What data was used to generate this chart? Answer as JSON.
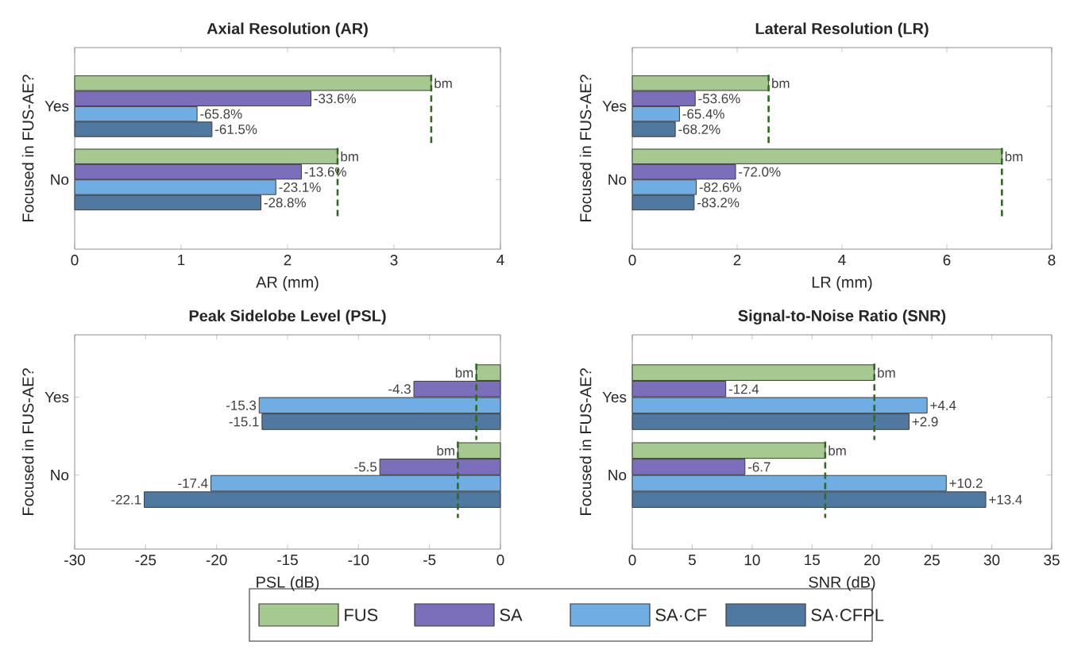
{
  "chart_data": [
    {
      "type": "bar",
      "orientation": "horizontal",
      "title": "Axial Resolution (AR)",
      "xlabel": "AR (mm)",
      "ylabel": "Focused in FUS-AE?",
      "categories": [
        "Yes",
        "No"
      ],
      "xlim": [
        0,
        4
      ],
      "xticks": [
        0,
        1,
        2,
        3,
        4
      ],
      "legend": "bottom",
      "series": [
        {
          "name": "FUS",
          "color": "#a6c98f",
          "values": [
            3.35,
            2.47
          ]
        },
        {
          "name": "SA",
          "color": "#7b6fbb",
          "values": [
            2.22,
            2.13
          ]
        },
        {
          "name": "SA·CF",
          "color": "#70ade2",
          "values": [
            1.15,
            1.89
          ]
        },
        {
          "name": "SA·CFPL",
          "color": "#4f79a0",
          "values": [
            1.29,
            1.75
          ]
        }
      ],
      "annotations": [
        {
          "text": "bm",
          "x": 3.35,
          "y": "Yes"
        },
        {
          "text": "-33.6%",
          "x": 2.22,
          "y": "Yes"
        },
        {
          "text": "-65.8%",
          "x": 1.15,
          "y": "Yes"
        },
        {
          "text": "-61.5%",
          "x": 1.29,
          "y": "Yes"
        },
        {
          "text": "bm",
          "x": 2.47,
          "y": "No"
        },
        {
          "text": "-13.6%",
          "x": 2.13,
          "y": "No"
        },
        {
          "text": "-23.1%",
          "x": 1.89,
          "y": "No"
        },
        {
          "text": "-28.8%",
          "x": 1.75,
          "y": "No"
        }
      ],
      "ref_lines": [
        {
          "axis": "x",
          "value": 3.35,
          "color": "#2e6b1e",
          "line_style": "dashed"
        },
        {
          "axis": "x",
          "value": 2.47,
          "color": "#2e6b1e",
          "line_style": "dashed"
        }
      ]
    },
    {
      "type": "bar",
      "orientation": "horizontal",
      "title": "Lateral Resolution (LR)",
      "xlabel": "LR (mm)",
      "ylabel": "Focused in FUS-AE?",
      "categories": [
        "Yes",
        "No"
      ],
      "xlim": [
        0,
        8
      ],
      "xticks": [
        0,
        2,
        4,
        6,
        8
      ],
      "series": [
        {
          "color": "#a6c98f",
          "values": [
            2.6,
            7.05
          ]
        },
        {
          "color": "#7b6fbb",
          "values": [
            1.2,
            1.97
          ]
        },
        {
          "color": "#70ade2",
          "values": [
            0.9,
            1.22
          ]
        },
        {
          "color": "#4f79a0",
          "values": [
            0.82,
            1.18
          ]
        }
      ],
      "annotations": [
        {
          "text": "bm",
          "x": 2.6,
          "y": "Yes"
        },
        {
          "text": "-53.6%",
          "x": 1.2,
          "y": "Yes"
        },
        {
          "text": "-65.4%",
          "x": 0.9,
          "y": "Yes"
        },
        {
          "text": "-68.2%",
          "x": 0.82,
          "y": "Yes"
        },
        {
          "text": "bm",
          "x": 7.05,
          "y": "No"
        },
        {
          "text": "-72.0%",
          "x": 1.97,
          "y": "No"
        },
        {
          "text": "-82.6%",
          "x": 1.22,
          "y": "No"
        },
        {
          "text": "-83.2%",
          "x": 1.18,
          "y": "No"
        }
      ],
      "ref_lines": [
        {
          "axis": "x",
          "value": 2.6,
          "color": "#2e6b1e",
          "line_style": "dashed"
        },
        {
          "axis": "x",
          "value": 7.05,
          "color": "#2e6b1e",
          "line_style": "dashed"
        }
      ]
    },
    {
      "type": "bar",
      "orientation": "horizontal",
      "title": "Peak Sidelobe Level (PSL)",
      "xlabel": "PSL (dB)",
      "ylabel": "Focused in FUS-AE?",
      "categories": [
        "Yes",
        "No"
      ],
      "xlim": [
        -30,
        0
      ],
      "xticks": [
        -30,
        -25,
        -20,
        -15,
        -10,
        -5,
        0
      ],
      "series": [
        {
          "color": "#a6c98f",
          "values": [
            -1.7,
            -3.0
          ]
        },
        {
          "color": "#7b6fbb",
          "values": [
            -6.1,
            -8.5
          ]
        },
        {
          "color": "#70ade2",
          "values": [
            -17.0,
            -20.4
          ]
        },
        {
          "color": "#4f79a0",
          "values": [
            -16.8,
            -25.1
          ]
        }
      ],
      "annotations": [
        {
          "text": "bm",
          "x": -1.7,
          "y": "Yes"
        },
        {
          "text": "-4.3",
          "x": -6.1,
          "y": "Yes"
        },
        {
          "text": "-15.3",
          "x": -17.0,
          "y": "Yes"
        },
        {
          "text": "-15.1",
          "x": -16.8,
          "y": "Yes"
        },
        {
          "text": "bm",
          "x": -3.0,
          "y": "No"
        },
        {
          "text": "-5.5",
          "x": -8.5,
          "y": "No"
        },
        {
          "text": "-17.4",
          "x": -20.4,
          "y": "No"
        },
        "-22.1"
      ],
      "ref_lines": [
        {
          "axis": "x",
          "value": -1.7,
          "color": "#2e6b1e",
          "line_style": "dashed"
        },
        {
          "axis": "x",
          "value": -3.0,
          "color": "#2e6b1e",
          "line_style": "dashed"
        }
      ]
    },
    {
      "type": "bar",
      "orientation": "horizontal",
      "title": "Signal-to-Noise Ratio (SNR)",
      "xlabel": "SNR (dB)",
      "ylabel": "Focused in FUS-AE?",
      "categories": [
        "Yes",
        "No"
      ],
      "xlim": [
        0,
        35
      ],
      "xticks": [
        0,
        5,
        10,
        15,
        20,
        25,
        30,
        35
      ],
      "series": [
        {
          "color": "#a6c98f",
          "values": [
            20.2,
            16.1
          ]
        },
        {
          "color": "#7b6fbb",
          "values": [
            7.8,
            9.4
          ]
        },
        {
          "color": "#70ade2",
          "values": [
            24.6,
            26.2
          ]
        },
        {
          "color": "#4f79a0",
          "values": [
            23.1,
            29.5
          ]
        }
      ],
      "annotations": [
        {
          "text": "bm",
          "x": 20.2,
          "y": "Yes"
        },
        {
          "text": "-12.4",
          "x": 7.8,
          "y": "Yes"
        },
        {
          "text": "+4.4",
          "x": 24.6,
          "y": "Yes"
        },
        {
          "text": "+2.9",
          "x": 23.1,
          "y": "Yes"
        },
        {
          "text": "bm",
          "x": 16.1,
          "y": "No"
        },
        {
          "text": "-6.7",
          "x": 9.4,
          "y": "No"
        },
        {
          "text": "+10.2",
          "x": 26.2,
          "y": "No"
        },
        "+13.4"
      ],
      "ref_lines": [
        {
          "axis": "x",
          "value": 20.2,
          "color": "#2e6b1e",
          "line_style": "dashed"
        },
        {
          "axis": "x",
          "value": 16.1,
          "color": "#2e6b1e",
          "line_style": "dashed"
        }
      ]
    }
  ]
}
